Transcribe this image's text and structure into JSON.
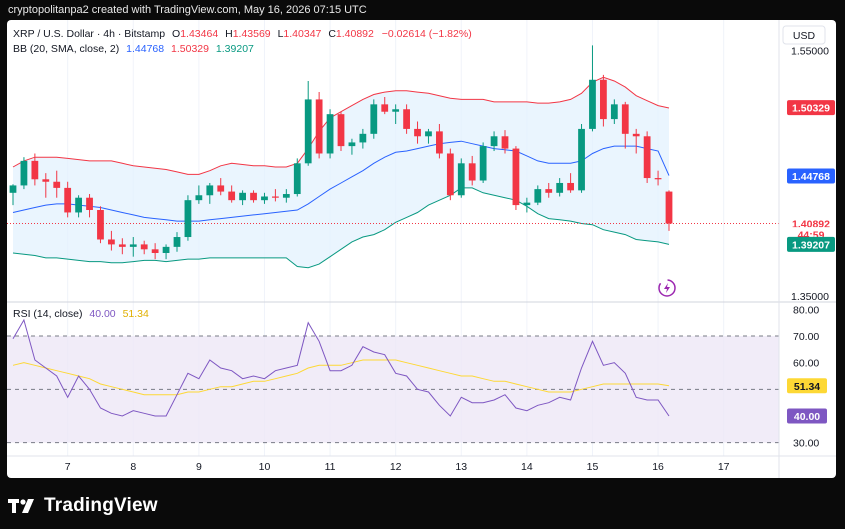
{
  "caption": "cryptopolitanpa2 created with TradingView.com, May 16, 2026 07:15 UTC",
  "footer": {
    "brand": "TradingView"
  },
  "currency": "USD",
  "legend": {
    "symbol": "XRP / U.S. Dollar · 4h · Bitstamp",
    "o_label": "O",
    "o": "1.43464",
    "h_label": "H",
    "h": "1.43569",
    "l_label": "L",
    "l": "1.40347",
    "c_label": "C",
    "c": "1.40892",
    "change": "−0.02614 (−1.82%)",
    "bb_label": "BB (20, SMA, close, 2)",
    "bb_basis": "1.44768",
    "bb_upper": "1.50329",
    "bb_lower": "1.39207",
    "rsi_label": "RSI (14, close)",
    "rsi_value": "40.00",
    "rsi_ma": "51.34"
  },
  "price_axis": {
    "ticks": [
      "1.55000",
      "1.35000"
    ]
  },
  "price_tags": [
    {
      "text": "1.50329",
      "value": 1.50329,
      "bg": "#f23645",
      "fg": "#ffffff"
    },
    {
      "text": "1.44768",
      "value": 1.44768,
      "bg": "#2962ff",
      "fg": "#ffffff"
    },
    {
      "text": "1.40892",
      "value": 1.40892,
      "bg": "#ffffff",
      "fg": "#f23645"
    },
    {
      "text": "44:59",
      "value": 1.4,
      "bg": "#ffffff",
      "fg": "#f23645"
    },
    {
      "text": "1.39207",
      "value": 1.39207,
      "bg": "#089981",
      "fg": "#ffffff"
    }
  ],
  "rsi_axis": {
    "ticks": [
      "80.00",
      "70.00",
      "60.00",
      "30.00"
    ]
  },
  "rsi_tags": [
    {
      "text": "51.34",
      "value": 51.34,
      "bg": "#fdd835",
      "fg": "#131722"
    },
    {
      "text": "40.00",
      "value": 40.0,
      "bg": "#7e57c2",
      "fg": "#ffffff"
    }
  ],
  "time_axis": {
    "labels": [
      "7",
      "8",
      "9",
      "10",
      "11",
      "12",
      "13",
      "14",
      "15",
      "16",
      "17"
    ]
  },
  "colors": {
    "up": "#089981",
    "down": "#f23645",
    "bb_upper": "#f23645",
    "bb_basis": "#2962ff",
    "bb_lower": "#089981",
    "bb_fill": "#e3f2fd",
    "rsi": "#7e57c2",
    "rsi_ma": "#fdd835",
    "rsi_band": "#ede7f6"
  },
  "chart_data": [
    {
      "type": "candlestick",
      "title": "XRP / U.S. Dollar · 4h · Bitstamp",
      "x": [
        "6 04:00",
        "6 08:00",
        "6 12:00",
        "6 16:00",
        "6 20:00",
        "7 00:00",
        "7 04:00",
        "7 08:00",
        "7 12:00",
        "7 16:00",
        "7 20:00",
        "8 00:00",
        "8 04:00",
        "8 08:00",
        "8 12:00",
        "8 16:00",
        "8 20:00",
        "9 00:00",
        "9 04:00",
        "9 08:00",
        "9 12:00",
        "9 16:00",
        "9 20:00",
        "10 00:00",
        "10 04:00",
        "10 08:00",
        "10 12:00",
        "10 16:00",
        "10 20:00",
        "11 00:00",
        "11 04:00",
        "11 08:00",
        "11 12:00",
        "11 16:00",
        "11 20:00",
        "12 00:00",
        "12 04:00",
        "12 08:00",
        "12 12:00",
        "12 16:00",
        "12 20:00",
        "13 00:00",
        "13 04:00",
        "13 08:00",
        "13 12:00",
        "13 16:00",
        "13 20:00",
        "14 00:00",
        "14 04:00",
        "14 08:00",
        "14 12:00",
        "14 16:00",
        "14 20:00",
        "15 00:00",
        "15 04:00",
        "15 08:00",
        "15 12:00",
        "15 16:00",
        "15 20:00",
        "16 00:00",
        "16 04:00"
      ],
      "candles": [
        {
          "o": 1.434,
          "h": 1.441,
          "l": 1.424,
          "c": 1.44
        },
        {
          "o": 1.44,
          "h": 1.463,
          "l": 1.437,
          "c": 1.46
        },
        {
          "o": 1.46,
          "h": 1.466,
          "l": 1.44,
          "c": 1.445
        },
        {
          "o": 1.445,
          "h": 1.45,
          "l": 1.43,
          "c": 1.443
        },
        {
          "o": 1.443,
          "h": 1.452,
          "l": 1.43,
          "c": 1.438
        },
        {
          "o": 1.438,
          "h": 1.443,
          "l": 1.414,
          "c": 1.418
        },
        {
          "o": 1.418,
          "h": 1.432,
          "l": 1.414,
          "c": 1.43
        },
        {
          "o": 1.43,
          "h": 1.433,
          "l": 1.414,
          "c": 1.42
        },
        {
          "o": 1.42,
          "h": 1.423,
          "l": 1.393,
          "c": 1.396
        },
        {
          "o": 1.396,
          "h": 1.403,
          "l": 1.387,
          "c": 1.392
        },
        {
          "o": 1.392,
          "h": 1.397,
          "l": 1.384,
          "c": 1.39
        },
        {
          "o": 1.39,
          "h": 1.398,
          "l": 1.382,
          "c": 1.392
        },
        {
          "o": 1.392,
          "h": 1.395,
          "l": 1.384,
          "c": 1.388
        },
        {
          "o": 1.388,
          "h": 1.393,
          "l": 1.38,
          "c": 1.385
        },
        {
          "o": 1.385,
          "h": 1.392,
          "l": 1.38,
          "c": 1.39
        },
        {
          "o": 1.39,
          "h": 1.402,
          "l": 1.386,
          "c": 1.398
        },
        {
          "o": 1.398,
          "h": 1.432,
          "l": 1.395,
          "c": 1.428
        },
        {
          "o": 1.428,
          "h": 1.44,
          "l": 1.425,
          "c": 1.432
        },
        {
          "o": 1.432,
          "h": 1.442,
          "l": 1.425,
          "c": 1.44
        },
        {
          "o": 1.44,
          "h": 1.446,
          "l": 1.432,
          "c": 1.435
        },
        {
          "o": 1.435,
          "h": 1.44,
          "l": 1.426,
          "c": 1.428
        },
        {
          "o": 1.428,
          "h": 1.436,
          "l": 1.424,
          "c": 1.434
        },
        {
          "o": 1.434,
          "h": 1.436,
          "l": 1.426,
          "c": 1.428
        },
        {
          "o": 1.428,
          "h": 1.434,
          "l": 1.425,
          "c": 1.431
        },
        {
          "o": 1.431,
          "h": 1.437,
          "l": 1.427,
          "c": 1.43
        },
        {
          "o": 1.43,
          "h": 1.437,
          "l": 1.426,
          "c": 1.433
        },
        {
          "o": 1.433,
          "h": 1.462,
          "l": 1.431,
          "c": 1.458
        },
        {
          "o": 1.458,
          "h": 1.525,
          "l": 1.456,
          "c": 1.51
        },
        {
          "o": 1.51,
          "h": 1.516,
          "l": 1.462,
          "c": 1.466
        },
        {
          "o": 1.466,
          "h": 1.502,
          "l": 1.462,
          "c": 1.498
        },
        {
          "o": 1.498,
          "h": 1.5,
          "l": 1.468,
          "c": 1.472
        },
        {
          "o": 1.472,
          "h": 1.478,
          "l": 1.465,
          "c": 1.475
        },
        {
          "o": 1.475,
          "h": 1.486,
          "l": 1.47,
          "c": 1.482
        },
        {
          "o": 1.482,
          "h": 1.51,
          "l": 1.478,
          "c": 1.506
        },
        {
          "o": 1.506,
          "h": 1.512,
          "l": 1.498,
          "c": 1.5
        },
        {
          "o": 1.5,
          "h": 1.506,
          "l": 1.49,
          "c": 1.502
        },
        {
          "o": 1.502,
          "h": 1.506,
          "l": 1.482,
          "c": 1.486
        },
        {
          "o": 1.486,
          "h": 1.492,
          "l": 1.474,
          "c": 1.48
        },
        {
          "o": 1.48,
          "h": 1.486,
          "l": 1.474,
          "c": 1.484
        },
        {
          "o": 1.484,
          "h": 1.49,
          "l": 1.462,
          "c": 1.466
        },
        {
          "o": 1.466,
          "h": 1.47,
          "l": 1.428,
          "c": 1.432
        },
        {
          "o": 1.432,
          "h": 1.462,
          "l": 1.43,
          "c": 1.458
        },
        {
          "o": 1.458,
          "h": 1.464,
          "l": 1.44,
          "c": 1.444
        },
        {
          "o": 1.444,
          "h": 1.475,
          "l": 1.442,
          "c": 1.472
        },
        {
          "o": 1.472,
          "h": 1.484,
          "l": 1.468,
          "c": 1.48
        },
        {
          "o": 1.48,
          "h": 1.485,
          "l": 1.466,
          "c": 1.47
        },
        {
          "o": 1.47,
          "h": 1.472,
          "l": 1.42,
          "c": 1.424
        },
        {
          "o": 1.424,
          "h": 1.43,
          "l": 1.418,
          "c": 1.426
        },
        {
          "o": 1.426,
          "h": 1.44,
          "l": 1.424,
          "c": 1.437
        },
        {
          "o": 1.437,
          "h": 1.442,
          "l": 1.43,
          "c": 1.434
        },
        {
          "o": 1.434,
          "h": 1.446,
          "l": 1.431,
          "c": 1.442
        },
        {
          "o": 1.442,
          "h": 1.45,
          "l": 1.434,
          "c": 1.436
        },
        {
          "o": 1.436,
          "h": 1.49,
          "l": 1.434,
          "c": 1.486
        },
        {
          "o": 1.486,
          "h": 1.554,
          "l": 1.484,
          "c": 1.526
        },
        {
          "o": 1.526,
          "h": 1.53,
          "l": 1.488,
          "c": 1.494
        },
        {
          "o": 1.494,
          "h": 1.51,
          "l": 1.49,
          "c": 1.506
        },
        {
          "o": 1.506,
          "h": 1.508,
          "l": 1.47,
          "c": 1.482
        },
        {
          "o": 1.482,
          "h": 1.486,
          "l": 1.466,
          "c": 1.48
        },
        {
          "o": 1.48,
          "h": 1.484,
          "l": 1.442,
          "c": 1.446
        },
        {
          "o": 1.446,
          "h": 1.452,
          "l": 1.44,
          "c": 1.445
        },
        {
          "o": 1.435,
          "h": 1.436,
          "l": 1.403,
          "c": 1.409
        }
      ],
      "bb_upper": [
        1.455,
        1.46,
        1.463,
        1.463,
        1.463,
        1.462,
        1.461,
        1.46,
        1.46,
        1.46,
        1.458,
        1.456,
        1.455,
        1.454,
        1.453,
        1.451,
        1.449,
        1.449,
        1.452,
        1.456,
        1.458,
        1.457,
        1.456,
        1.456,
        1.455,
        1.455,
        1.458,
        1.47,
        1.484,
        1.495,
        1.5,
        1.505,
        1.51,
        1.514,
        1.516,
        1.517,
        1.517,
        1.516,
        1.515,
        1.513,
        1.511,
        1.51,
        1.51,
        1.51,
        1.508,
        1.508,
        1.508,
        1.508,
        1.507,
        1.507,
        1.508,
        1.51,
        1.515,
        1.524,
        1.528,
        1.525,
        1.52,
        1.513,
        1.509,
        1.505,
        1.503
      ],
      "bb_basis": [
        1.418,
        1.42,
        1.422,
        1.424,
        1.425,
        1.425,
        1.424,
        1.423,
        1.422,
        1.42,
        1.418,
        1.416,
        1.414,
        1.413,
        1.412,
        1.411,
        1.411,
        1.411,
        1.412,
        1.413,
        1.414,
        1.415,
        1.416,
        1.417,
        1.418,
        1.419,
        1.42,
        1.425,
        1.431,
        1.437,
        1.442,
        1.447,
        1.452,
        1.458,
        1.463,
        1.467,
        1.468,
        1.47,
        1.472,
        1.474,
        1.475,
        1.476,
        1.474,
        1.472,
        1.47,
        1.469,
        1.468,
        1.464,
        1.46,
        1.458,
        1.458,
        1.458,
        1.46,
        1.466,
        1.47,
        1.472,
        1.472,
        1.472,
        1.47,
        1.468,
        1.448
      ],
      "bb_lower": [
        1.385,
        1.384,
        1.383,
        1.381,
        1.381,
        1.38,
        1.379,
        1.378,
        1.378,
        1.377,
        1.377,
        1.378,
        1.379,
        1.379,
        1.378,
        1.379,
        1.38,
        1.38,
        1.381,
        1.381,
        1.381,
        1.381,
        1.381,
        1.381,
        1.381,
        1.381,
        1.374,
        1.373,
        1.376,
        1.382,
        1.388,
        1.394,
        1.398,
        1.4,
        1.404,
        1.41,
        1.414,
        1.418,
        1.424,
        1.428,
        1.432,
        1.438,
        1.438,
        1.434,
        1.432,
        1.43,
        1.428,
        1.423,
        1.417,
        1.413,
        1.412,
        1.411,
        1.409,
        1.408,
        1.404,
        1.402,
        1.4,
        1.396,
        1.395,
        1.394,
        1.392
      ],
      "price_ylim": [
        1.35,
        1.56
      ]
    },
    {
      "type": "line",
      "title": "RSI (14, close)",
      "series": [
        {
          "name": "RSI",
          "values": [
            69,
            76,
            61,
            58,
            55,
            47,
            55,
            50,
            43,
            41,
            40,
            42,
            41,
            40,
            40,
            48,
            56,
            54,
            61,
            58,
            57,
            54,
            55,
            54,
            57,
            58,
            59,
            75,
            68,
            57,
            57,
            59,
            66,
            64,
            63,
            56,
            55,
            50,
            49,
            44,
            40,
            47,
            45,
            45,
            46,
            48,
            43,
            42,
            44,
            45,
            47,
            46,
            58,
            68,
            59,
            60,
            56,
            47,
            46,
            46,
            40
          ]
        },
        {
          "name": "MA",
          "values": [
            59,
            60,
            59,
            58,
            57,
            56,
            55,
            54,
            52,
            51,
            50,
            49,
            48,
            48,
            48,
            48,
            49,
            49,
            50,
            51,
            51,
            52,
            53,
            53,
            54,
            55,
            56,
            58,
            59,
            59,
            59,
            60,
            61,
            61,
            61,
            61,
            60,
            59,
            58,
            57,
            56,
            55,
            55,
            54,
            53,
            53,
            52,
            51,
            50,
            49,
            49,
            49,
            50,
            51,
            52,
            52,
            52,
            52,
            52,
            52,
            51.34
          ]
        }
      ],
      "ylim": [
        25,
        82
      ],
      "bands": [
        70,
        30
      ],
      "midline": 50
    }
  ]
}
